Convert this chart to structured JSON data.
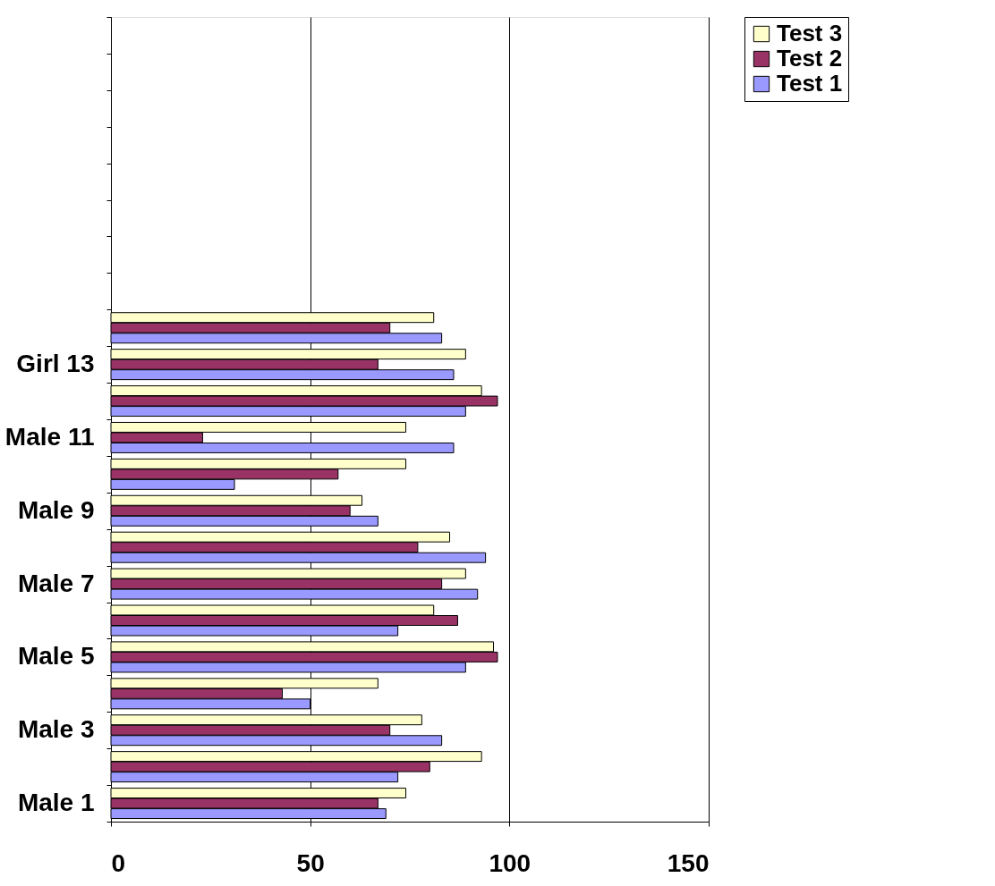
{
  "chart_data": {
    "type": "bar",
    "orientation": "horizontal",
    "categories": [
      null,
      null,
      null,
      null,
      null,
      null,
      null,
      null,
      null,
      "Girl 13",
      null,
      "Male 11",
      null,
      "Male 9",
      null,
      "Male 7",
      null,
      "Male 5",
      null,
      "Male 3",
      null,
      "Male 1"
    ],
    "series": [
      {
        "name": "Test 3",
        "color": "#ffffcc",
        "values": [
          null,
          null,
          null,
          null,
          null,
          null,
          null,
          null,
          81,
          89,
          93,
          74,
          74,
          63,
          85,
          89,
          81,
          96,
          67,
          78,
          93,
          74
        ]
      },
      {
        "name": "Test 2",
        "color": "#993366",
        "values": [
          null,
          null,
          null,
          null,
          null,
          null,
          null,
          null,
          70,
          67,
          97,
          23,
          57,
          60,
          77,
          83,
          87,
          97,
          43,
          70,
          80,
          67
        ]
      },
      {
        "name": "Test 1",
        "color": "#9999ff",
        "values": [
          null,
          null,
          null,
          null,
          null,
          null,
          null,
          null,
          83,
          86,
          89,
          86,
          31,
          67,
          94,
          92,
          72,
          89,
          50,
          83,
          72,
          69
        ]
      }
    ],
    "xlim": [
      0,
      150
    ],
    "xticks": [
      0,
      50,
      100,
      150
    ],
    "grid": "x",
    "legend": "right"
  }
}
